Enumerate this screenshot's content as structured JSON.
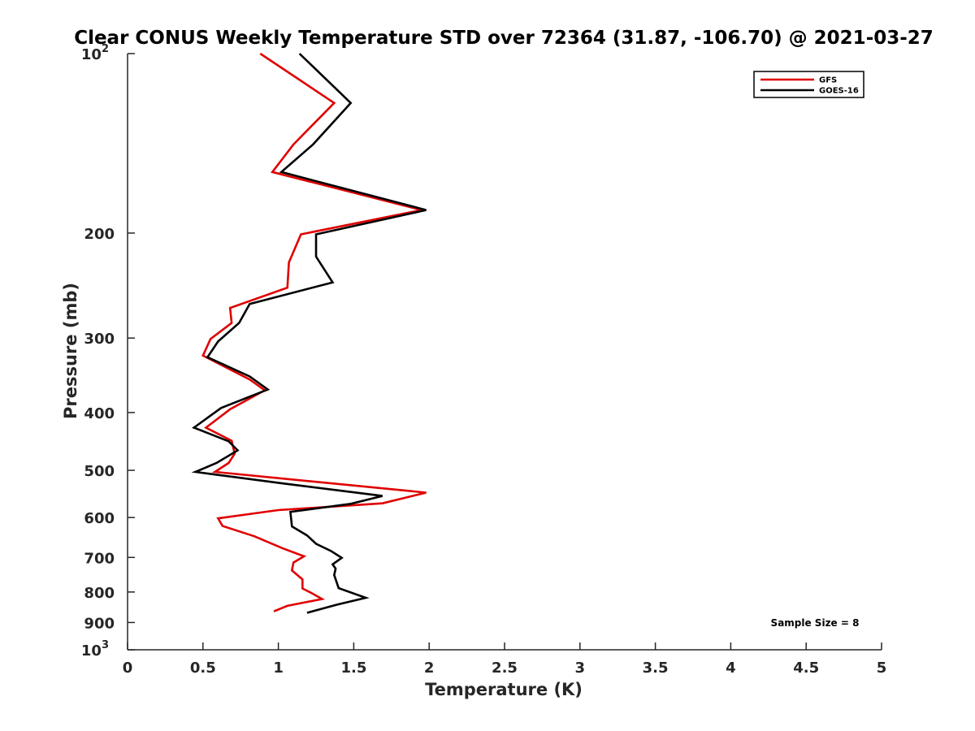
{
  "chart_data": {
    "type": "line",
    "title": "Clear CONUS Weekly Temperature STD over 72364 (31.87, -106.70) @ 2021-03-27",
    "xlabel": "Temperature (K)",
    "ylabel": "Pressure (mb)",
    "xlim": [
      0,
      5
    ],
    "ylim": [
      100,
      1000
    ],
    "y_scale": "log",
    "y_reversed": true,
    "x_ticks": [
      0,
      0.5,
      1,
      1.5,
      2,
      2.5,
      3,
      3.5,
      4,
      4.5,
      5
    ],
    "x_tick_labels": [
      "0",
      "0.5",
      "1",
      "1.5",
      "2",
      "2.5",
      "3",
      "3.5",
      "4",
      "4.5",
      "5"
    ],
    "y_ticks": [
      100,
      200,
      300,
      400,
      500,
      600,
      700,
      800,
      900,
      1000
    ],
    "y_tick_labels": [
      {
        "base": "10",
        "exp": "2"
      },
      {
        "base": "200",
        "exp": ""
      },
      {
        "base": "300",
        "exp": ""
      },
      {
        "base": "400",
        "exp": ""
      },
      {
        "base": "500",
        "exp": ""
      },
      {
        "base": "600",
        "exp": ""
      },
      {
        "base": "700",
        "exp": ""
      },
      {
        "base": "800",
        "exp": ""
      },
      {
        "base": "900",
        "exp": ""
      },
      {
        "base": "10",
        "exp": "3"
      }
    ],
    "legend_position": "top-right",
    "grid": false,
    "annotation": "Sample Size = 8",
    "series": [
      {
        "name": "GFS",
        "color": "#e00000",
        "points": [
          [
            0.88,
            100
          ],
          [
            1.37,
            121
          ],
          [
            1.1,
            142
          ],
          [
            0.96,
            158
          ],
          [
            1.95,
            183
          ],
          [
            1.15,
            201
          ],
          [
            1.07,
            224
          ],
          [
            1.06,
            247
          ],
          [
            0.68,
            267
          ],
          [
            0.69,
            283
          ],
          [
            0.55,
            301
          ],
          [
            0.5,
            321
          ],
          [
            0.81,
            352
          ],
          [
            0.91,
            367
          ],
          [
            0.68,
            395
          ],
          [
            0.52,
            424
          ],
          [
            0.69,
            446
          ],
          [
            0.71,
            469
          ],
          [
            0.67,
            486
          ],
          [
            0.58,
            503
          ],
          [
            1.98,
            545
          ],
          [
            1.69,
            568
          ],
          [
            1.0,
            583
          ],
          [
            0.6,
            602
          ],
          [
            0.63,
            620
          ],
          [
            0.84,
            645
          ],
          [
            1.03,
            676
          ],
          [
            1.17,
            697
          ],
          [
            1.1,
            714
          ],
          [
            1.09,
            736
          ],
          [
            1.16,
            762
          ],
          [
            1.16,
            789
          ],
          [
            1.22,
            803
          ],
          [
            1.29,
            822
          ],
          [
            1.06,
            844
          ],
          [
            0.97,
            862
          ]
        ]
      },
      {
        "name": "GOES-16",
        "color": "#000000",
        "points": [
          [
            1.14,
            100
          ],
          [
            1.48,
            121
          ],
          [
            1.23,
            142
          ],
          [
            1.02,
            158
          ],
          [
            1.98,
            183
          ],
          [
            1.25,
            201
          ],
          [
            1.25,
            219
          ],
          [
            1.36,
            242
          ],
          [
            0.81,
            263
          ],
          [
            0.74,
            283
          ],
          [
            0.6,
            304
          ],
          [
            0.53,
            323
          ],
          [
            0.81,
            348
          ],
          [
            0.93,
            366
          ],
          [
            0.62,
            393
          ],
          [
            0.44,
            424
          ],
          [
            0.67,
            447
          ],
          [
            0.73,
            463
          ],
          [
            0.59,
            486
          ],
          [
            0.45,
            503
          ],
          [
            1.03,
            526
          ],
          [
            1.69,
            552
          ],
          [
            1.48,
            569
          ],
          [
            1.08,
            587
          ],
          [
            1.09,
            621
          ],
          [
            1.19,
            643
          ],
          [
            1.25,
            664
          ],
          [
            1.35,
            683
          ],
          [
            1.42,
            701
          ],
          [
            1.36,
            719
          ],
          [
            1.38,
            731
          ],
          [
            1.37,
            749
          ],
          [
            1.4,
            788
          ],
          [
            1.58,
            818
          ],
          [
            1.39,
            840
          ],
          [
            1.19,
            867
          ]
        ]
      }
    ]
  }
}
